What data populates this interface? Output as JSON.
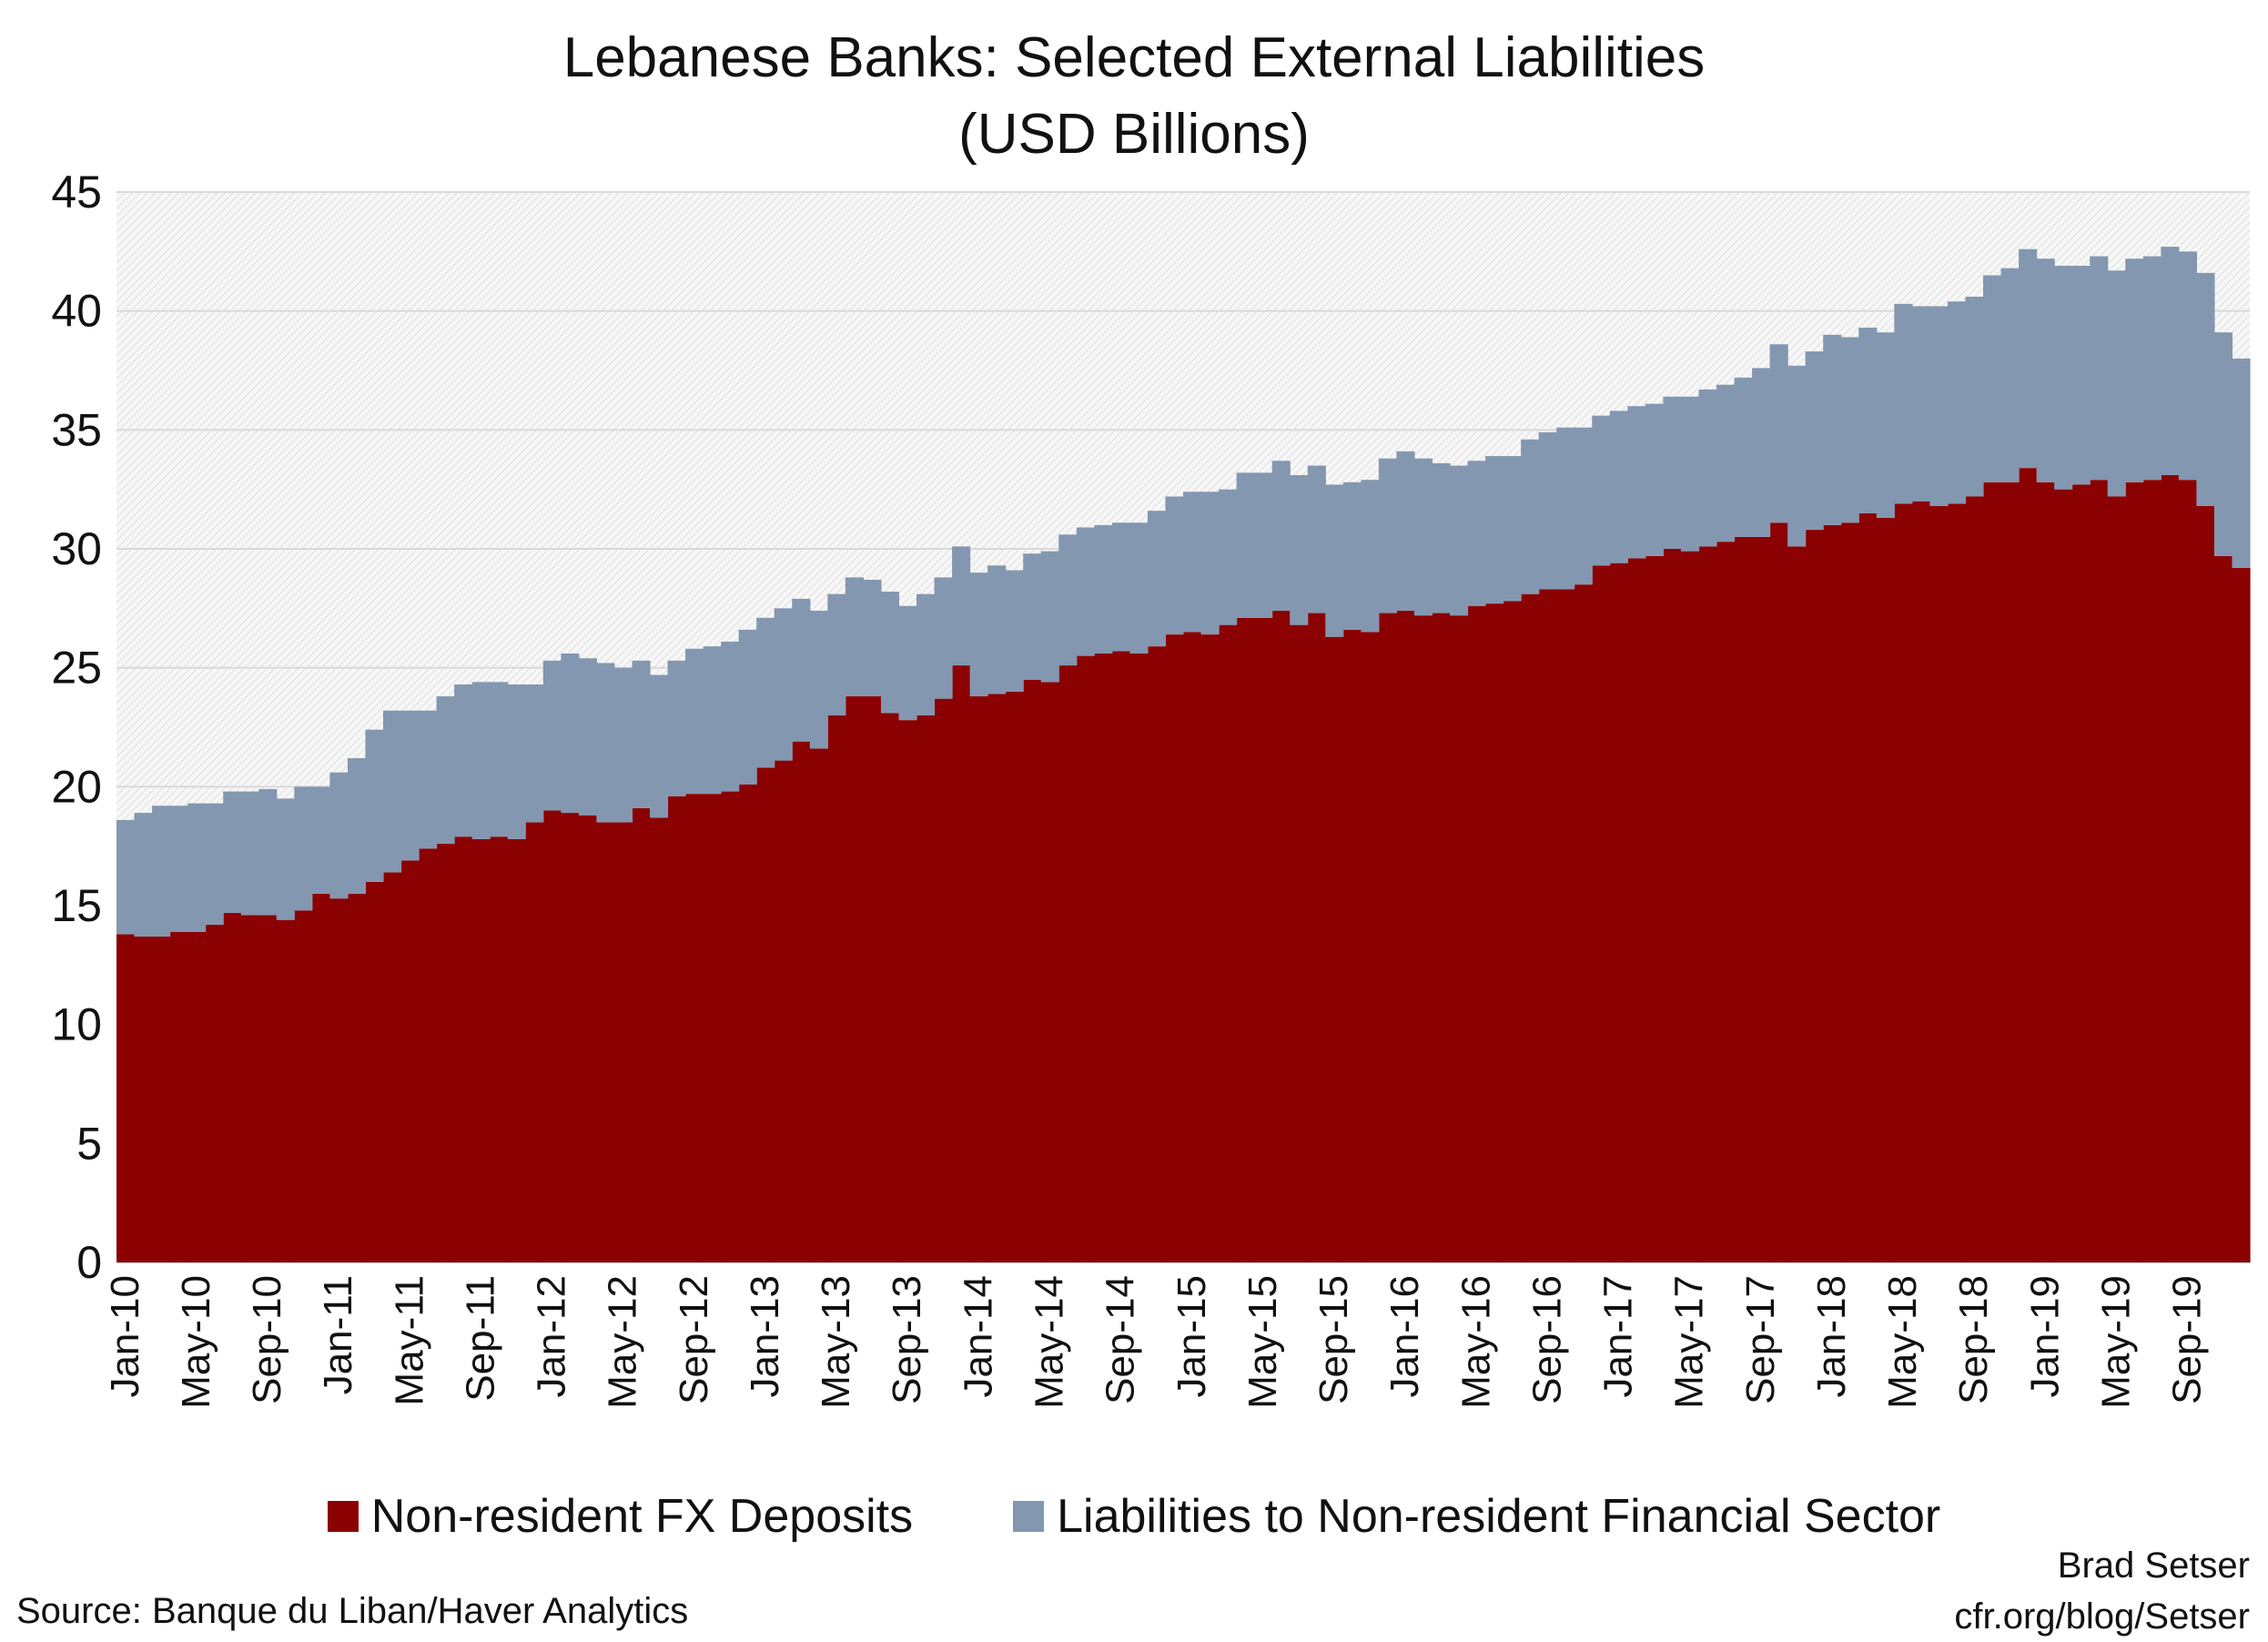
{
  "chart_data": {
    "type": "area",
    "stacked": true,
    "title": "Lebanese Banks: Selected External Liabilities",
    "subtitle": "(USD Billions)",
    "ylim": [
      0,
      45
    ],
    "y_ticks": [
      0,
      5,
      10,
      15,
      20,
      25,
      30,
      35,
      40,
      45
    ],
    "x_range": [
      "Jan-10",
      "Dec-19"
    ],
    "x_tick_labels": [
      "Jan-10",
      "May-10",
      "Sep-10",
      "Jan-11",
      "May-11",
      "Sep-11",
      "Jan-12",
      "May-12",
      "Sep-12",
      "Jan-13",
      "May-13",
      "Sep-13",
      "Jan-14",
      "May-14",
      "Sep-14",
      "Jan-15",
      "May-15",
      "Sep-15",
      "Jan-16",
      "May-16",
      "Sep-16",
      "Jan-17",
      "May-17",
      "Sep-17",
      "Jan-18",
      "May-18",
      "Sep-18",
      "Jan-19",
      "May-19",
      "Sep-19"
    ],
    "frequency": "monthly",
    "grid": true,
    "legend_position": "bottom",
    "series": [
      {
        "name": "Non-resident FX Deposits",
        "color": "#8b0000",
        "values": [
          13.8,
          13.7,
          13.7,
          13.9,
          13.9,
          14.2,
          14.7,
          14.6,
          14.6,
          14.4,
          14.8,
          15.5,
          15.3,
          15.5,
          16.0,
          16.4,
          16.9,
          17.4,
          17.6,
          17.9,
          17.8,
          17.9,
          17.8,
          18.5,
          19.0,
          18.9,
          18.8,
          18.5,
          18.5,
          19.1,
          18.7,
          19.6,
          19.7,
          19.7,
          19.8,
          20.1,
          20.8,
          21.1,
          21.9,
          21.6,
          23.0,
          23.8,
          23.8,
          23.1,
          22.8,
          23.0,
          23.7,
          25.1,
          23.8,
          23.9,
          24.0,
          24.5,
          24.4,
          25.1,
          25.5,
          25.6,
          25.7,
          25.6,
          25.9,
          26.4,
          26.5,
          26.4,
          26.8,
          27.1,
          27.1,
          27.4,
          26.8,
          27.3,
          26.3,
          26.6,
          26.5,
          27.3,
          27.4,
          27.2,
          27.3,
          27.2,
          27.6,
          27.7,
          27.8,
          28.1,
          28.3,
          28.3,
          28.5,
          29.3,
          29.4,
          29.6,
          29.7,
          30.0,
          29.9,
          30.1,
          30.3,
          30.5,
          30.5,
          31.1,
          30.1,
          30.8,
          31.0,
          31.1,
          31.5,
          31.3,
          31.9,
          32.0,
          31.8,
          31.9,
          32.2,
          32.8,
          32.8,
          33.4,
          32.8,
          32.5,
          32.7,
          32.9,
          32.2,
          32.8,
          32.9,
          33.1,
          32.9,
          31.8,
          29.7,
          29.2
        ]
      },
      {
        "name": "Liabilities to Non-resident Financial Sector",
        "color": "#8497b0",
        "values": [
          4.8,
          5.2,
          5.5,
          5.3,
          5.4,
          5.1,
          5.1,
          5.2,
          5.3,
          5.1,
          5.2,
          4.5,
          5.3,
          5.7,
          6.4,
          6.8,
          6.3,
          5.8,
          6.2,
          6.4,
          6.6,
          6.5,
          6.5,
          5.8,
          6.3,
          6.7,
          6.6,
          6.7,
          6.5,
          6.2,
          6.0,
          5.7,
          6.1,
          6.2,
          6.3,
          6.5,
          6.3,
          6.4,
          6.0,
          5.8,
          5.1,
          5.0,
          4.9,
          5.1,
          4.8,
          5.1,
          5.1,
          5.0,
          5.2,
          5.4,
          5.1,
          5.3,
          5.5,
          5.5,
          5.4,
          5.4,
          5.4,
          5.5,
          5.7,
          5.8,
          5.9,
          6.0,
          5.7,
          6.1,
          6.1,
          6.3,
          6.3,
          6.2,
          6.4,
          6.2,
          6.4,
          6.5,
          6.7,
          6.6,
          6.3,
          6.3,
          6.1,
          6.2,
          6.1,
          6.5,
          6.6,
          6.8,
          6.6,
          6.3,
          6.4,
          6.4,
          6.4,
          6.4,
          6.5,
          6.6,
          6.6,
          6.7,
          7.1,
          7.5,
          7.6,
          7.5,
          8.0,
          7.8,
          7.8,
          7.8,
          8.4,
          8.2,
          8.4,
          8.5,
          8.4,
          8.7,
          9.0,
          9.2,
          9.4,
          9.4,
          9.2,
          9.4,
          9.5,
          9.4,
          9.4,
          9.6,
          9.6,
          9.8,
          9.4,
          8.8
        ]
      }
    ]
  },
  "footer": {
    "source": "Source: Banque du Liban/Haver Analytics",
    "author": "Brad Setser",
    "site": "cfr.org/blog/Setser"
  }
}
